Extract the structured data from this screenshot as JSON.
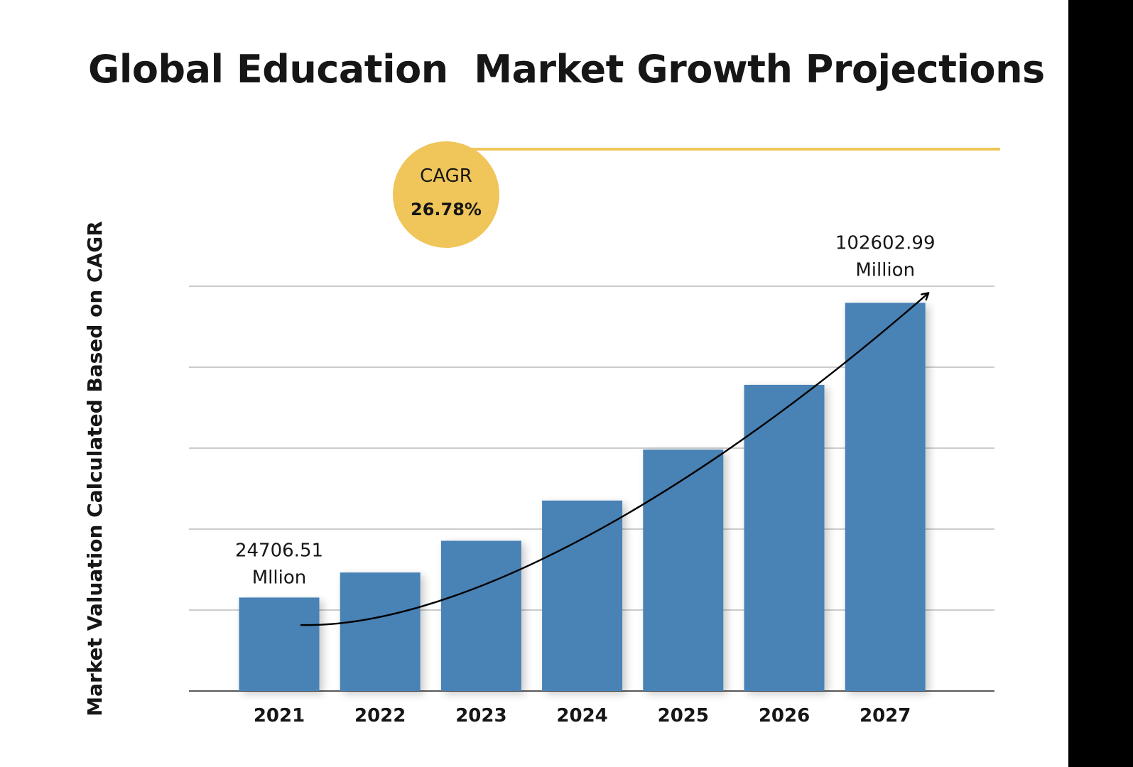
{
  "chart_data": {
    "type": "bar",
    "title": "Global Education  Market Growth Projections",
    "ylabel": "Market Valuation Calculated Based on CAGR",
    "xlabel": "",
    "categories": [
      "2021",
      "2022",
      "2023",
      "2024",
      "2025",
      "2026",
      "2027"
    ],
    "values": [
      24706.51,
      31322,
      39710,
      50345,
      63830,
      80925,
      102602.99
    ],
    "ylim": [
      0,
      107000
    ],
    "grid": true,
    "bar_color": "#4882B5",
    "annotations": [
      {
        "category": "2021",
        "value_text": "24706.51",
        "unit_text": "Mllion"
      },
      {
        "category": "2027",
        "value_text": "102602.99",
        "unit_text": "Million"
      }
    ],
    "cagr_badge": {
      "label": "CAGR",
      "value": "26.78%",
      "color": "#F0C65A"
    },
    "trend_arrow": true
  },
  "colors": {
    "accent": "#F0C65A",
    "bar": "#4882B5",
    "gridline": "#9A9A9A",
    "text": "#161616",
    "side_bar": "#000000"
  }
}
